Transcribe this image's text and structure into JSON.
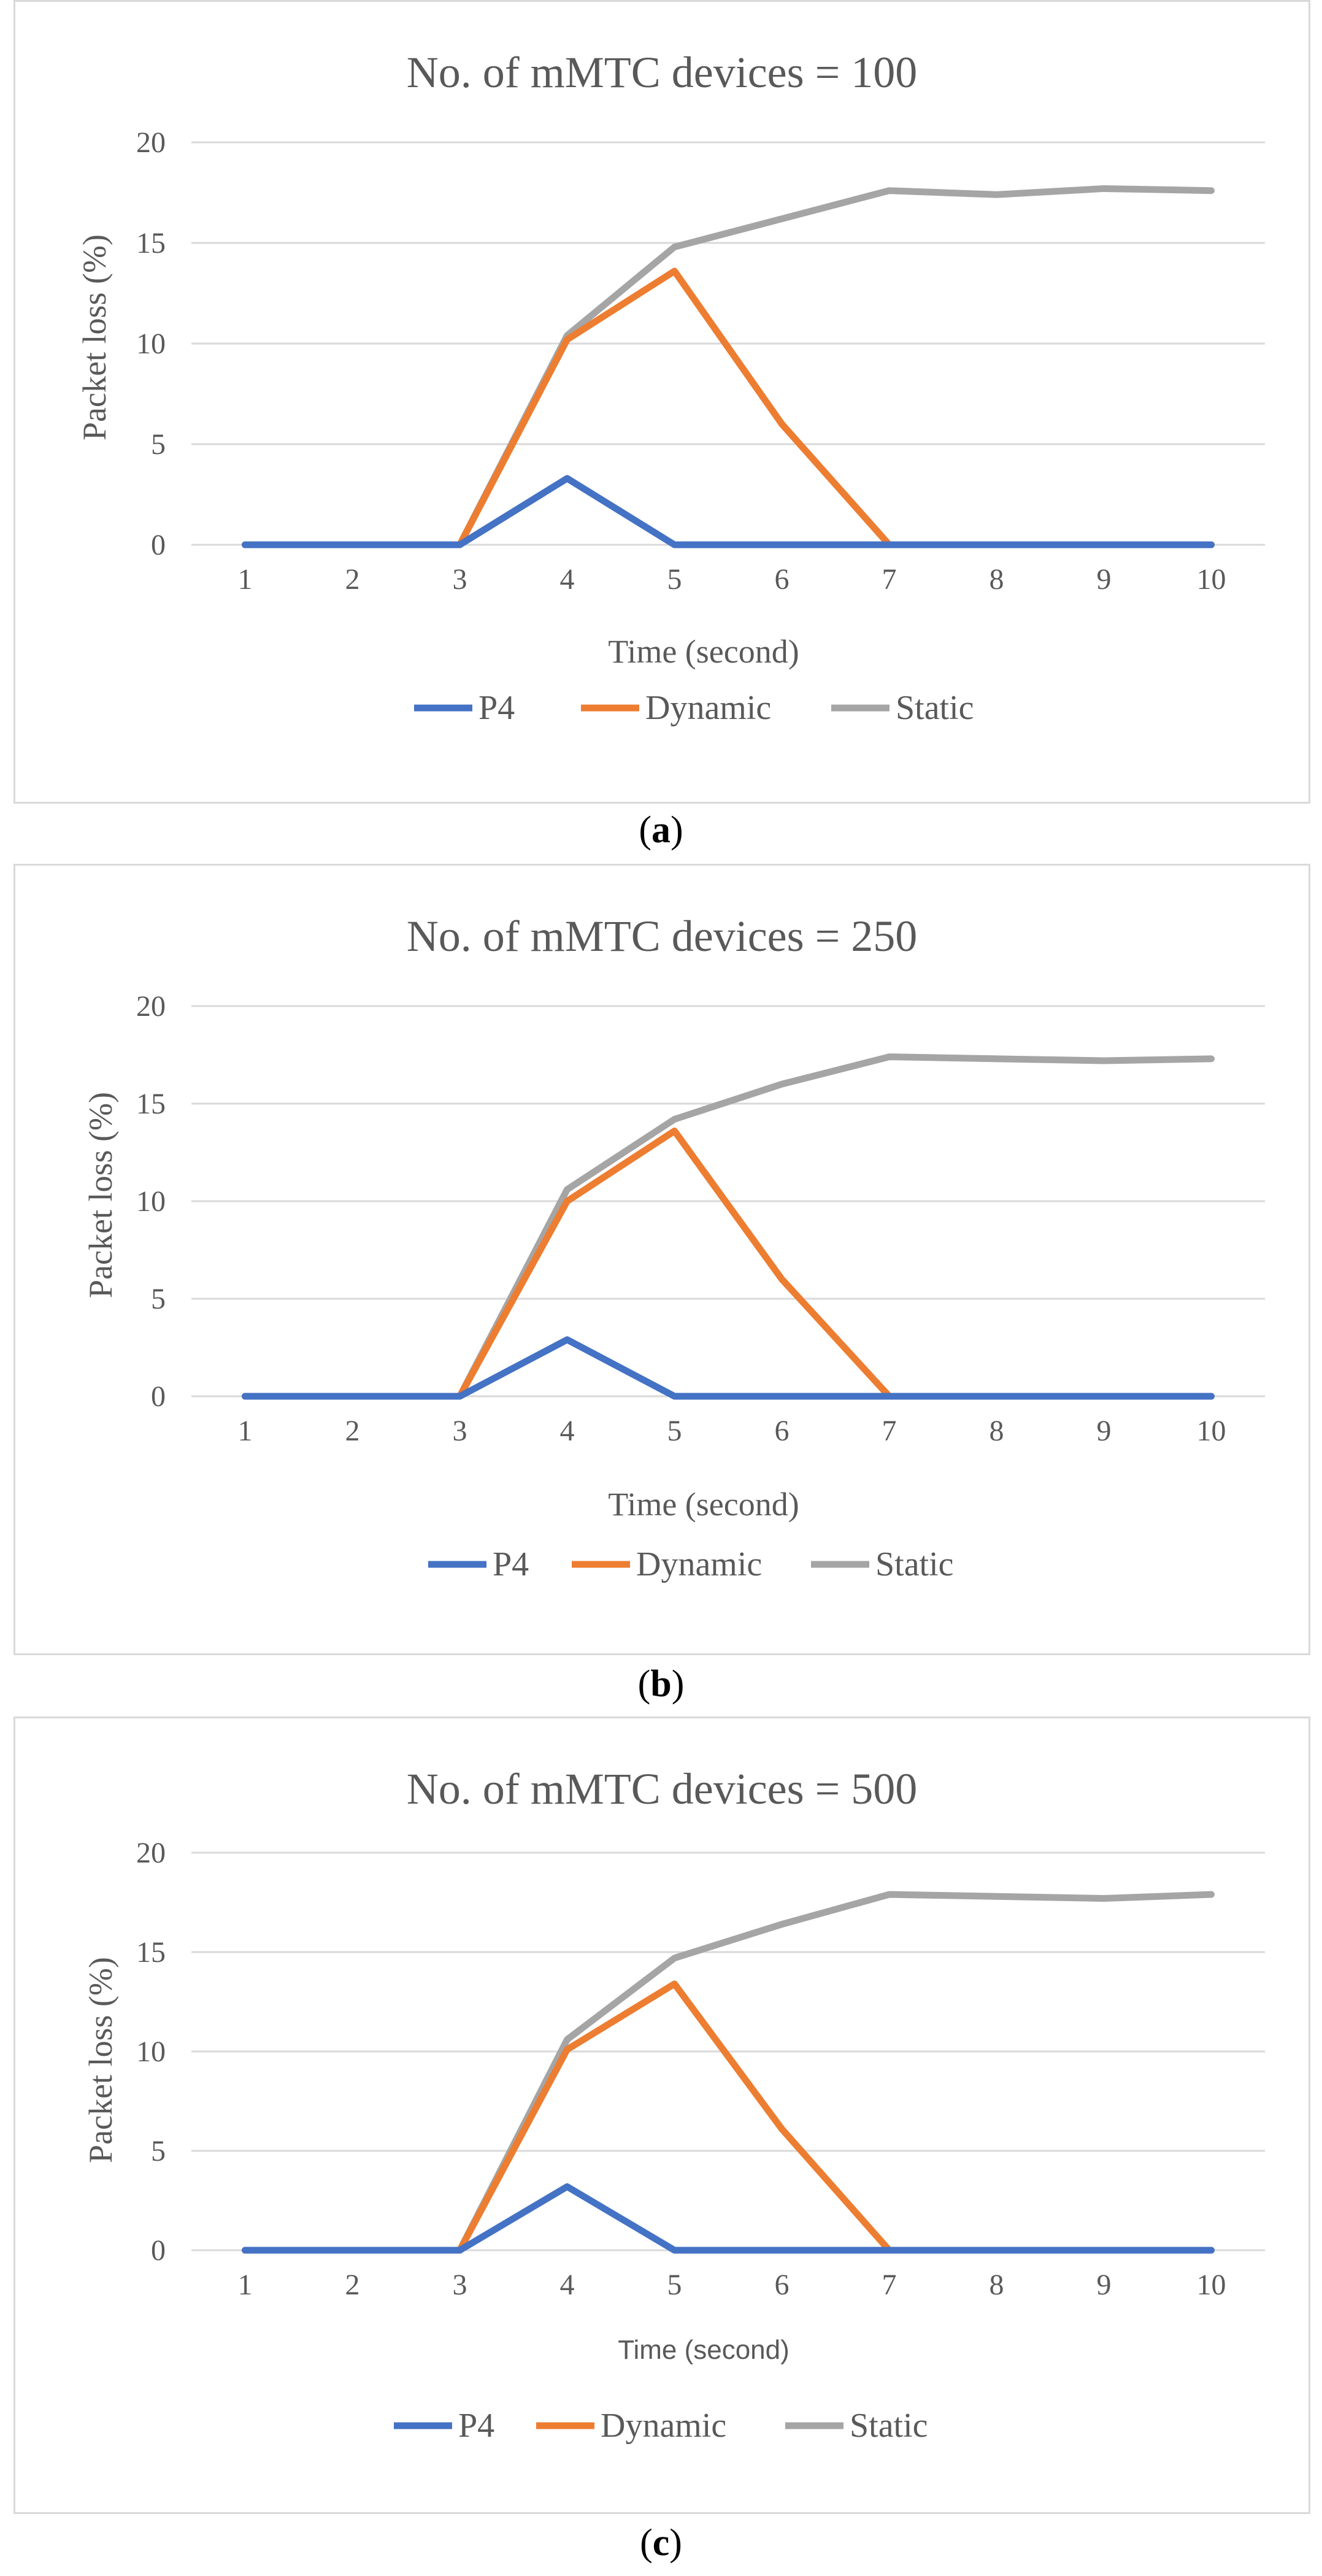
{
  "chart_data": [
    {
      "type": "line",
      "title": "No. of mMTC devices = 100",
      "xlabel": "Time (second)",
      "ylabel": "Packet loss (%)",
      "caption_open": "(",
      "caption_letter": "a",
      "caption_close": ")",
      "categories": [
        "1",
        "2",
        "3",
        "4",
        "5",
        "6",
        "7",
        "8",
        "9",
        "10"
      ],
      "ylim": [
        0,
        20
      ],
      "yticks": [
        "0",
        "5",
        "10",
        "15",
        "20"
      ],
      "grid": true,
      "legend": "bottom",
      "series": [
        {
          "name": "P4",
          "color": "#4472C4",
          "values": [
            0,
            0,
            0,
            3.3,
            0,
            0,
            0,
            0,
            0,
            0
          ]
        },
        {
          "name": "Dynamic",
          "color": "#ED7D31",
          "values": [
            0,
            0,
            0,
            10.2,
            13.6,
            6.0,
            0,
            0,
            0,
            0
          ]
        },
        {
          "name": "Static",
          "color": "#A5A5A5",
          "values": [
            0,
            0,
            0,
            10.4,
            14.8,
            16.2,
            17.6,
            17.4,
            17.7,
            17.6
          ]
        }
      ]
    },
    {
      "type": "line",
      "title": "No. of mMTC devices = 250",
      "xlabel": "Time (second)",
      "ylabel": "Packet loss (%)",
      "caption_open": "(",
      "caption_letter": "b",
      "caption_close": ")",
      "categories": [
        "1",
        "2",
        "3",
        "4",
        "5",
        "6",
        "7",
        "8",
        "9",
        "10"
      ],
      "ylim": [
        0,
        20
      ],
      "yticks": [
        "0",
        "5",
        "10",
        "15",
        "20"
      ],
      "grid": true,
      "legend": "bottom",
      "series": [
        {
          "name": "P4",
          "color": "#4472C4",
          "values": [
            0,
            0,
            0,
            2.9,
            0,
            0,
            0,
            0,
            0,
            0
          ]
        },
        {
          "name": "Dynamic",
          "color": "#ED7D31",
          "values": [
            0,
            0,
            0,
            10.0,
            13.6,
            6.0,
            0,
            0,
            0,
            0
          ]
        },
        {
          "name": "Static",
          "color": "#A5A5A5",
          "values": [
            0,
            0,
            0,
            10.6,
            14.2,
            16.0,
            17.4,
            17.3,
            17.2,
            17.3
          ]
        }
      ]
    },
    {
      "type": "line",
      "title": "No. of mMTC devices = 500",
      "xlabel": "Time (second)",
      "ylabel": "Packet loss (%)",
      "caption_open": "(",
      "caption_letter": "c",
      "caption_close": ")",
      "categories": [
        "1",
        "2",
        "3",
        "4",
        "5",
        "6",
        "7",
        "8",
        "9",
        "10"
      ],
      "ylim": [
        0,
        20
      ],
      "yticks": [
        "0",
        "5",
        "10",
        "15",
        "20"
      ],
      "grid": true,
      "legend": "bottom",
      "series": [
        {
          "name": "P4",
          "color": "#4472C4",
          "values": [
            0,
            0,
            0,
            3.2,
            0,
            0,
            0,
            0,
            0,
            0
          ]
        },
        {
          "name": "Dynamic",
          "color": "#ED7D31",
          "values": [
            0,
            0,
            0,
            10.1,
            13.4,
            6.1,
            0,
            0,
            0,
            0
          ]
        },
        {
          "name": "Static",
          "color": "#A5A5A5",
          "values": [
            0,
            0,
            0,
            10.6,
            14.7,
            16.4,
            17.9,
            17.8,
            17.7,
            17.9
          ]
        }
      ]
    }
  ]
}
